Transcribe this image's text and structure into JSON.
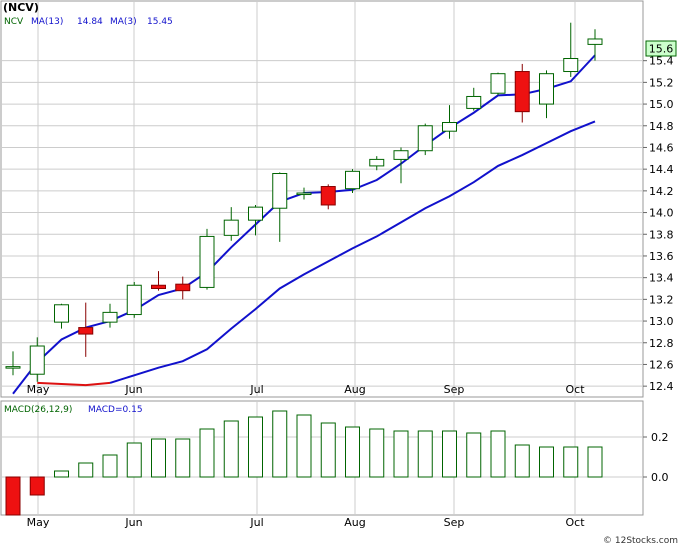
{
  "title": "(NCV)",
  "legend": {
    "ticker": "NCV",
    "ma13_label": "MA(13)",
    "ma13_value": "14.84",
    "ma3_label": "MA(3)",
    "ma3_value": "15.45"
  },
  "last_price_label": "15.6",
  "macd_legend": {
    "label": "MACD(26,12,9)",
    "value_label": "MACD=0.15"
  },
  "watermark": "© 12Stocks.com",
  "colors": {
    "up": "#006400",
    "down_fill": "#ee1111",
    "ma_fast": "#1111cc",
    "ma_slow_early": "#dd1111",
    "grid": "#cccccc",
    "macd": "#006400"
  },
  "chart_data": [
    {
      "type": "candlestick",
      "x_axis_labels": [
        "May",
        "Jun",
        "Jul",
        "Aug",
        "Sep",
        "Oct"
      ],
      "y_ticks": [
        "12.4",
        "12.6",
        "12.8",
        "13.0",
        "13.2",
        "13.4",
        "13.6",
        "13.8",
        "14.0",
        "14.2",
        "14.4",
        "14.6",
        "14.8",
        "15.0",
        "15.2",
        "15.4"
      ],
      "ylim": [
        12.3,
        15.95
      ],
      "grid": true,
      "candles": [
        {
          "o": 12.58,
          "h": 12.72,
          "l": 12.5,
          "c": 12.58
        },
        {
          "o": 12.51,
          "h": 12.85,
          "l": 12.44,
          "c": 12.77
        },
        {
          "o": 12.99,
          "h": 13.16,
          "l": 12.93,
          "c": 13.15
        },
        {
          "o": 12.94,
          "h": 13.17,
          "l": 12.67,
          "c": 12.88
        },
        {
          "o": 12.99,
          "h": 13.16,
          "l": 12.94,
          "c": 13.08
        },
        {
          "o": 13.06,
          "h": 13.36,
          "l": 13.03,
          "c": 13.33
        },
        {
          "o": 13.33,
          "h": 13.46,
          "l": 13.28,
          "c": 13.3
        },
        {
          "o": 13.34,
          "h": 13.41,
          "l": 13.2,
          "c": 13.28
        },
        {
          "o": 13.31,
          "h": 13.85,
          "l": 13.29,
          "c": 13.78
        },
        {
          "o": 13.79,
          "h": 14.05,
          "l": 13.74,
          "c": 13.93
        },
        {
          "o": 13.93,
          "h": 14.07,
          "l": 13.79,
          "c": 14.05
        },
        {
          "o": 14.04,
          "h": 14.37,
          "l": 13.73,
          "c": 14.36
        },
        {
          "o": 14.17,
          "h": 14.23,
          "l": 14.12,
          "c": 14.18
        },
        {
          "o": 14.24,
          "h": 14.26,
          "l": 14.03,
          "c": 14.07
        },
        {
          "o": 14.22,
          "h": 14.4,
          "l": 14.18,
          "c": 14.38
        },
        {
          "o": 14.43,
          "h": 14.52,
          "l": 14.39,
          "c": 14.49
        },
        {
          "o": 14.49,
          "h": 14.6,
          "l": 14.27,
          "c": 14.57
        },
        {
          "o": 14.57,
          "h": 14.82,
          "l": 14.53,
          "c": 14.8
        },
        {
          "o": 14.75,
          "h": 14.99,
          "l": 14.68,
          "c": 14.83
        },
        {
          "o": 14.96,
          "h": 15.15,
          "l": 14.94,
          "c": 15.07
        },
        {
          "o": 15.1,
          "h": 15.29,
          "l": 15.08,
          "c": 15.28
        },
        {
          "o": 15.3,
          "h": 15.37,
          "l": 14.83,
          "c": 14.93
        },
        {
          "o": 15.0,
          "h": 15.31,
          "l": 14.87,
          "c": 15.28
        },
        {
          "o": 15.3,
          "h": 15.75,
          "l": 15.25,
          "c": 15.42
        },
        {
          "o": 15.55,
          "h": 15.69,
          "l": 15.4,
          "c": 15.6
        }
      ],
      "ma_fast": [
        12.33,
        12.62,
        12.83,
        12.94,
        13.0,
        13.1,
        13.24,
        13.3,
        13.45,
        13.68,
        13.89,
        14.1,
        14.18,
        14.19,
        14.21,
        14.3,
        14.45,
        14.62,
        14.78,
        14.92,
        15.08,
        15.09,
        15.14,
        15.21,
        15.45
      ],
      "ma_slow": [
        null,
        12.43,
        12.42,
        12.41,
        12.43,
        12.5,
        12.57,
        12.63,
        12.74,
        12.93,
        13.11,
        13.3,
        13.43,
        13.55,
        13.67,
        13.78,
        13.91,
        14.04,
        14.15,
        14.28,
        14.43,
        14.53,
        14.64,
        14.75,
        14.84
      ]
    },
    {
      "type": "bar",
      "y_ticks": [
        "0.2",
        "0.0"
      ],
      "ylim": [
        -0.19,
        0.32
      ],
      "values": [
        -0.19,
        -0.09,
        0.03,
        0.07,
        0.11,
        0.17,
        0.19,
        0.19,
        0.24,
        0.28,
        0.3,
        0.33,
        0.31,
        0.27,
        0.25,
        0.24,
        0.23,
        0.23,
        0.23,
        0.22,
        0.23,
        0.16,
        0.15,
        0.15,
        0.15
      ]
    }
  ]
}
